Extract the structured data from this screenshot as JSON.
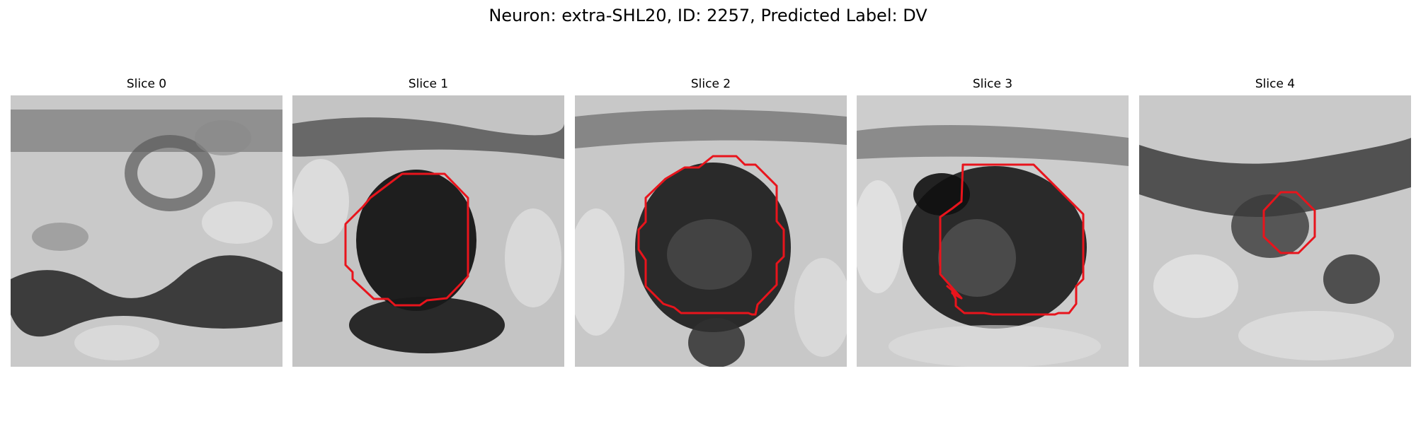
{
  "suptitle": "Neuron: extra-SHL20, ID: 2257, Predicted Label: DV",
  "colors": {
    "contour": "#e8141c",
    "background": "#ffffff"
  },
  "panels": [
    {
      "title": "Slice 0"
    },
    {
      "title": "Slice 1"
    },
    {
      "title": "Slice 2"
    },
    {
      "title": "Slice 3"
    },
    {
      "title": "Slice 4"
    }
  ]
}
